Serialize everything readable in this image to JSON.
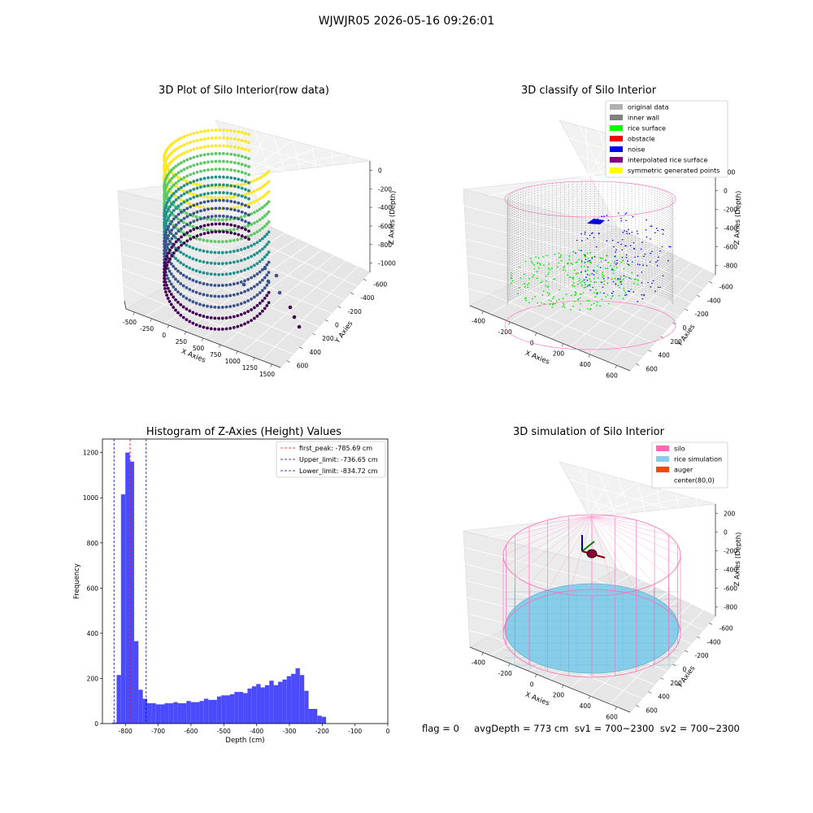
{
  "figure": {
    "suptitle": "WJWJR05 2026-05-16 09:26:01",
    "status_line": "flag = 0     avgDepth = 773 cm  sv1 = 700~2300  sv2 = 700~2300"
  },
  "panels": {
    "raw": {
      "title": "3D Plot of Silo Interior(row data)",
      "xlabel": "X Axies",
      "ylabel": "Y Axies",
      "zlabel": "Z Axies (Depth)",
      "xticks": [
        "-500",
        "-250",
        "0",
        "250",
        "500",
        "750",
        "1000",
        "1250",
        "1500"
      ],
      "yticks": [
        "600",
        "400",
        "200",
        "0",
        "-200",
        "-400",
        "-600"
      ],
      "zticks": [
        "0",
        "-200",
        "-400",
        "-600",
        "-800",
        "-1000"
      ],
      "colormap": [
        "#440154",
        "#3b528b",
        "#21918c",
        "#5ec962",
        "#fde725"
      ]
    },
    "classify": {
      "title": "3D classify of Silo Interior",
      "xlabel": "X Axies",
      "ylabel": "Y Axies",
      "zlabel": "Z Axies (Depth)",
      "xticks": [
        "-400",
        "-200",
        "0",
        "200",
        "400",
        "600"
      ],
      "yticks": [
        "600",
        "400",
        "200",
        "0",
        "-200",
        "-400",
        "-600"
      ],
      "zticks": [
        "200",
        "0",
        "-200",
        "-400",
        "-600",
        "-800"
      ],
      "legend": [
        {
          "label": "original data",
          "color": "#b0b0b0"
        },
        {
          "label": "inner wall",
          "color": "#808080"
        },
        {
          "label": "rice surface",
          "color": "#00ff00"
        },
        {
          "label": "obstacle",
          "color": "#ff0000"
        },
        {
          "label": "noise",
          "color": "#0000ff"
        },
        {
          "label": "interpolated rice surface",
          "color": "#800080"
        },
        {
          "label": "symmetric generated points",
          "color": "#ffff00"
        }
      ]
    },
    "simulation": {
      "title": "3D simulation of Silo Interior",
      "xlabel": "X Axies",
      "ylabel": "Y Axies",
      "zlabel": "Z Axies (Depth)",
      "xticks": [
        "-400",
        "-200",
        "0",
        "200",
        "400",
        "600"
      ],
      "yticks": [
        "600",
        "400",
        "200",
        "0",
        "-200",
        "-400",
        "-600"
      ],
      "zticks": [
        "200",
        "0",
        "-200",
        "-400",
        "-600",
        "-800"
      ],
      "legend": [
        {
          "label": "silo",
          "color": "#ff69b4"
        },
        {
          "label": "rice simulation",
          "color": "#87ceeb"
        },
        {
          "label": "auger",
          "color": "#ff4500"
        },
        {
          "label": "center(80,0)",
          "color": ""
        }
      ]
    }
  },
  "chart_data": {
    "type": "bar",
    "title": "Histogram of Z-Axies (Height) Values",
    "xlabel": "Depth (cm)",
    "ylabel": "Frequency",
    "xlim": [
      -870,
      0
    ],
    "ylim": [
      0,
      1260
    ],
    "xticks": [
      -800,
      -700,
      -600,
      -500,
      -400,
      -300,
      -200,
      -100,
      0
    ],
    "yticks": [
      0,
      200,
      400,
      600,
      800,
      1000,
      1200
    ],
    "bin_width": 13.3,
    "bin_start": -840,
    "bar_color": "#4b4bfd",
    "values": [
      5,
      215,
      1015,
      1200,
      1160,
      365,
      150,
      110,
      90,
      90,
      85,
      85,
      90,
      90,
      95,
      90,
      90,
      100,
      95,
      95,
      100,
      110,
      105,
      105,
      120,
      125,
      125,
      130,
      140,
      140,
      135,
      155,
      165,
      175,
      160,
      170,
      190,
      170,
      185,
      195,
      210,
      220,
      245,
      215,
      145,
      65,
      65,
      35,
      30
    ],
    "vlines": [
      {
        "name": "first_peak: -785.69 cm",
        "value": -785.69,
        "color": "#ff0000"
      },
      {
        "name": "Upper_limit: -736.65 cm",
        "value": -736.65,
        "color": "#0000cc"
      },
      {
        "name": "Lower_limit: -834.72 cm",
        "value": -834.72,
        "color": "#0000cc"
      }
    ],
    "legend_position": "upper right",
    "grid": false
  }
}
